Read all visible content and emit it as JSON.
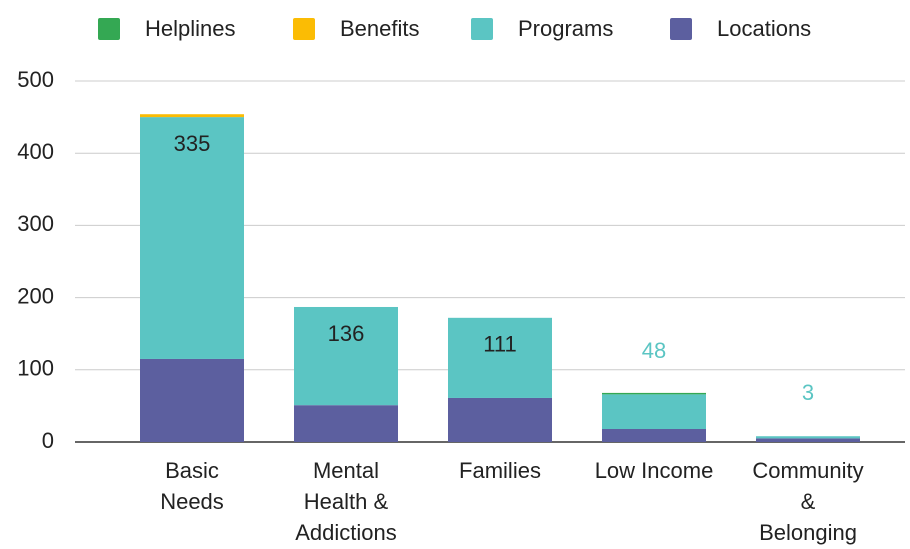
{
  "chart_data": {
    "type": "stacked_bar",
    "categories": [
      "Basic\nNeeds",
      "Mental\nHealth &\nAddictions",
      "Families",
      "Low Income",
      "Community\n&\nBelonging"
    ],
    "series": [
      {
        "name": "Locations",
        "color": "#5c5f9f",
        "values": [
          115,
          51,
          61,
          18,
          5
        ]
      },
      {
        "name": "Programs",
        "color": "#5bc5c3",
        "values": [
          335,
          136,
          111,
          48,
          3
        ],
        "data_labels": true
      },
      {
        "name": "Benefits",
        "color": "#fbbc04",
        "values": [
          4,
          0,
          0,
          0,
          0
        ]
      },
      {
        "name": "Helplines",
        "color": "#34a853",
        "values": [
          0,
          0,
          0,
          2,
          0
        ]
      }
    ],
    "ylim": [
      0,
      500
    ],
    "yticks": [
      0,
      100,
      200,
      300,
      400,
      500
    ],
    "grid": true,
    "legend": "top"
  }
}
